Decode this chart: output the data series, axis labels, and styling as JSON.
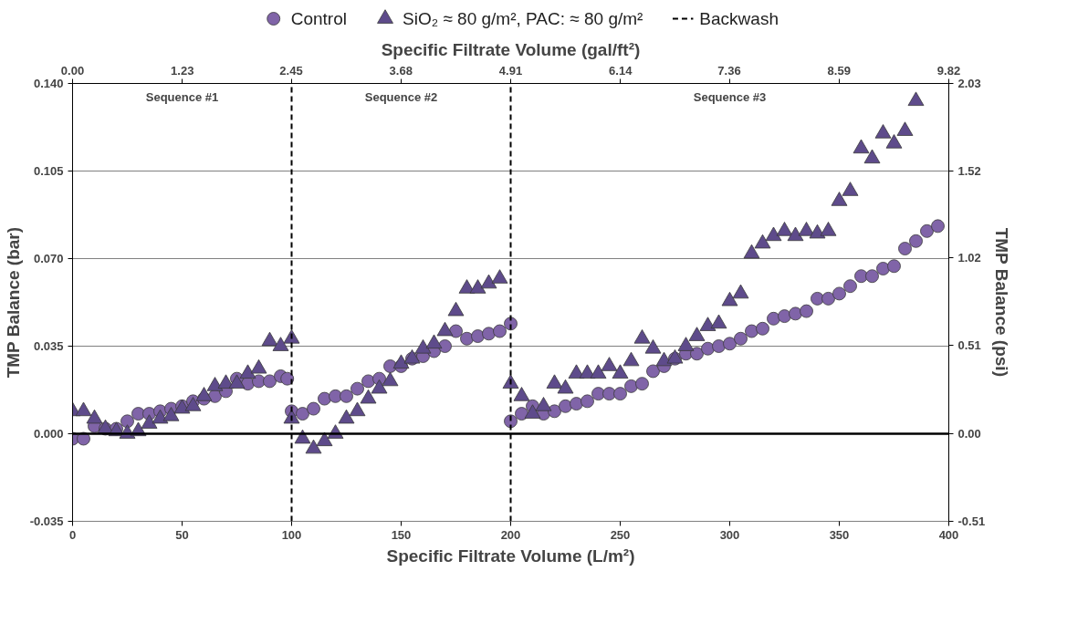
{
  "chart_data": {
    "type": "scatter",
    "xlabel": "Specific Filtrate Volume (L/m²)",
    "x2label": "Specific Filtrate Volume (gal/ft²)",
    "ylabel": "TMP Balance (bar)",
    "y2label": "TMP Balance (psi)",
    "xlim": [
      0,
      400
    ],
    "xticks": [
      0,
      50,
      100,
      150,
      200,
      250,
      300,
      350,
      400
    ],
    "x2lim": [
      0,
      9.82
    ],
    "x2ticks": [
      {
        "value": 0,
        "label": "0.00"
      },
      1.23,
      2.45,
      3.68,
      4.91,
      6.14,
      7.36,
      8.59,
      9.82
    ],
    "ylim": [
      -0.035,
      0.14
    ],
    "yticks": [
      {
        "value": -0.035,
        "label": "-0.035"
      },
      {
        "value": 0,
        "label": "0.000"
      },
      0.035,
      {
        "value": 0.07,
        "label": "0.070"
      },
      0.105,
      {
        "value": 0.14,
        "label": "0.140"
      }
    ],
    "y2lim": [
      -0.51,
      2.03
    ],
    "y2ticks": [
      -0.51,
      {
        "value": 0,
        "label": "0.00"
      },
      0.51,
      1.02,
      1.52,
      2.03
    ],
    "grid": "y",
    "legend": "top",
    "series": [
      {
        "name": "Control",
        "marker": "circle",
        "color": "#8064a8",
        "x": [
          0,
          5,
          10,
          15,
          20,
          25,
          30,
          35,
          40,
          45,
          50,
          55,
          60,
          65,
          70,
          75,
          80,
          85,
          90,
          95,
          98,
          100,
          105,
          110,
          115,
          120,
          125,
          130,
          135,
          140,
          145,
          150,
          155,
          160,
          165,
          170,
          175,
          180,
          185,
          190,
          195,
          200,
          200,
          205,
          210,
          215,
          220,
          225,
          230,
          235,
          240,
          245,
          250,
          255,
          260,
          265,
          270,
          275,
          280,
          285,
          290,
          295,
          300,
          305,
          310,
          315,
          320,
          325,
          330,
          335,
          340,
          345,
          350,
          355,
          360,
          365,
          370,
          375,
          380,
          385,
          390,
          395
        ],
        "values": [
          -0.002,
          -0.002,
          0.003,
          0.002,
          0.002,
          0.005,
          0.008,
          0.008,
          0.009,
          0.01,
          0.011,
          0.013,
          0.014,
          0.015,
          0.017,
          0.022,
          0.02,
          0.021,
          0.021,
          0.023,
          0.022,
          0.009,
          0.008,
          0.01,
          0.014,
          0.015,
          0.015,
          0.018,
          0.021,
          0.022,
          0.027,
          0.027,
          0.03,
          0.031,
          0.033,
          0.035,
          0.041,
          0.038,
          0.039,
          0.04,
          0.041,
          0.044,
          0.005,
          0.008,
          0.011,
          0.008,
          0.009,
          0.011,
          0.012,
          0.013,
          0.016,
          0.016,
          0.016,
          0.019,
          0.02,
          0.025,
          0.027,
          0.03,
          0.032,
          0.032,
          0.034,
          0.035,
          0.036,
          0.038,
          0.041,
          0.042,
          0.046,
          0.047,
          0.048,
          0.049,
          0.054,
          0.054,
          0.056,
          0.059,
          0.063,
          0.063,
          0.066,
          0.067,
          0.074,
          0.077,
          0.081,
          0.083
        ]
      },
      {
        "name": "SiO₂ ≈ 80 g/m², PAC: ≈ 80 g/m²",
        "marker": "triangle",
        "color": "#5e4b8b",
        "x": [
          0,
          5,
          10,
          15,
          20,
          25,
          30,
          35,
          40,
          45,
          50,
          55,
          60,
          65,
          70,
          75,
          80,
          85,
          90,
          95,
          100,
          100,
          105,
          110,
          115,
          120,
          125,
          130,
          135,
          140,
          145,
          150,
          155,
          160,
          165,
          170,
          175,
          180,
          185,
          190,
          195,
          200,
          205,
          210,
          215,
          220,
          225,
          230,
          235,
          240,
          245,
          250,
          255,
          260,
          265,
          270,
          275,
          280,
          285,
          290,
          295,
          300,
          305,
          310,
          315,
          320,
          325,
          330,
          335,
          340,
          345,
          350,
          355,
          360,
          365,
          370,
          375,
          380,
          385
        ],
        "values": [
          0.009,
          0.009,
          0.006,
          0.002,
          0.001,
          0.0,
          0.001,
          0.004,
          0.006,
          0.007,
          0.01,
          0.011,
          0.015,
          0.019,
          0.02,
          0.02,
          0.024,
          0.026,
          0.037,
          0.035,
          0.038,
          0.006,
          -0.002,
          -0.006,
          -0.003,
          0.0,
          0.006,
          0.009,
          0.014,
          0.018,
          0.021,
          0.028,
          0.03,
          0.034,
          0.036,
          0.041,
          0.049,
          0.058,
          0.058,
          0.06,
          0.062,
          0.02,
          0.015,
          0.008,
          0.011,
          0.02,
          0.018,
          0.024,
          0.024,
          0.024,
          0.027,
          0.024,
          0.029,
          0.038,
          0.034,
          0.029,
          0.03,
          0.035,
          0.039,
          0.043,
          0.044,
          0.053,
          0.056,
          0.072,
          0.076,
          0.079,
          0.081,
          0.079,
          0.081,
          0.08,
          0.081,
          0.093,
          0.097,
          0.114,
          0.11,
          0.12,
          0.116,
          0.121,
          0.133
        ]
      }
    ],
    "ref_lines": [
      {
        "axis": "y",
        "value": 0,
        "color": "#000000",
        "line_style": "solid"
      },
      {
        "axis": "x",
        "value": 100,
        "label": "Backwash",
        "color": "#000000",
        "line_style": "dashed"
      },
      {
        "axis": "x",
        "value": 200,
        "color": "#000000",
        "line_style": "dashed"
      }
    ],
    "annotations": [
      "Sequence #1",
      "Sequence #2",
      "Sequence #3"
    ]
  }
}
